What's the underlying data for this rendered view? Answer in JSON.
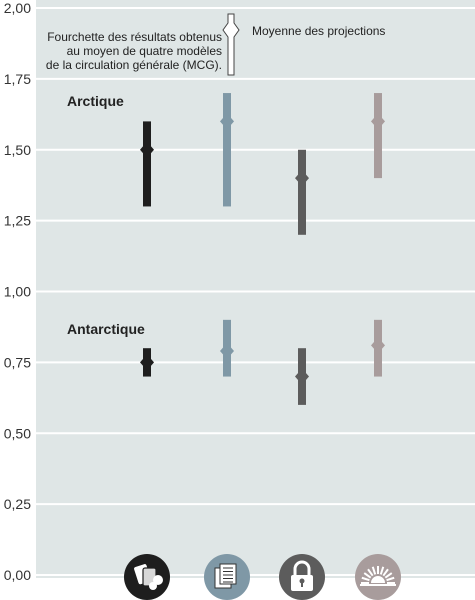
{
  "chart_data": {
    "type": "range",
    "title": "",
    "xlabel": "",
    "ylabel": "",
    "ylim": [
      0,
      2
    ],
    "y_ticks": [
      "2,00",
      "1,75",
      "1,50",
      "1,25",
      "1,00",
      "0,75",
      "0,50",
      "0,25",
      "0,00"
    ],
    "grid": true,
    "legend": {
      "range_label": "Fourchette des résultats obtenus\nau moyen de quatre modèles\nde la circulation générale (MCG).",
      "mean_label": "Moyenne des projections",
      "placement": "top-center"
    },
    "regions": [
      {
        "label": "Arctique",
        "series": [
          {
            "icon": "cards-icon",
            "color": "#1e1e1e",
            "min": 1.3,
            "max": 1.6,
            "mean": 1.5
          },
          {
            "icon": "document-icon",
            "color": "#7f98a6",
            "min": 1.3,
            "max": 1.7,
            "mean": 1.6
          },
          {
            "icon": "padlock-icon",
            "color": "#5c5c5c",
            "min": 1.2,
            "max": 1.5,
            "mean": 1.4
          },
          {
            "icon": "sunburst-icon",
            "color": "#a89c9c",
            "min": 1.4,
            "max": 1.7,
            "mean": 1.6
          }
        ]
      },
      {
        "label": "Antarctique",
        "series": [
          {
            "icon": "cards-icon",
            "color": "#1e1e1e",
            "min": 0.7,
            "max": 0.8,
            "mean": 0.75
          },
          {
            "icon": "document-icon",
            "color": "#7f98a6",
            "min": 0.7,
            "max": 0.9,
            "mean": 0.79
          },
          {
            "icon": "padlock-icon",
            "color": "#5c5c5c",
            "min": 0.6,
            "max": 0.8,
            "mean": 0.7
          },
          {
            "icon": "sunburst-icon",
            "color": "#a89c9c",
            "min": 0.7,
            "max": 0.9,
            "mean": 0.81
          }
        ]
      }
    ]
  },
  "colors": {
    "plot_background": "#dfe6e6",
    "gridline": "#ffffff"
  }
}
